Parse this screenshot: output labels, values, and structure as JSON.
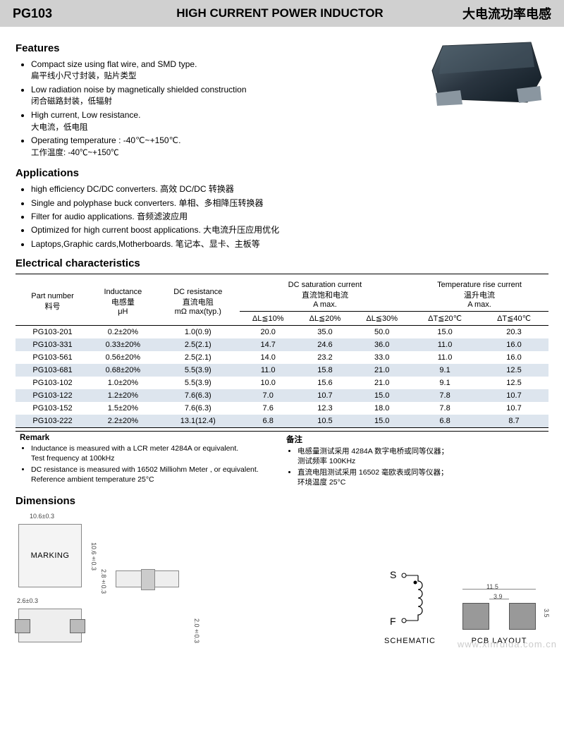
{
  "header": {
    "part": "PG103",
    "title_en": "HIGH CURRENT POWER INDUCTOR",
    "title_cn": "大电流功率电感"
  },
  "sections": {
    "features": "Features",
    "applications": "Applications",
    "elec": "Electrical  characteristics",
    "dims": "Dimensions"
  },
  "features": [
    {
      "en": "Compact size using flat wire, and SMD type.",
      "cn": "扁平线小尺寸封装，贴片类型"
    },
    {
      "en": "Low radiation noise by magnetically shielded construction",
      "cn": "闭合磁路封装，低辐射"
    },
    {
      "en": "High current, Low resistance.",
      "cn": "大电流，低电阻"
    },
    {
      "en": "Operating temperature : -40℃~+150℃.",
      "cn": "工作温度:  -40℃~+150℃"
    }
  ],
  "applications": [
    "high efficiency DC/DC converters.  高效 DC/DC 转换器",
    "Single and polyphase buck converters.  单相、多相降压转换器",
    "Filter for audio applications.  音频滤波应用",
    "Optimized for high current boost applications.  大电流升压应用优化",
    "Laptops,Graphic cards,Motherboards.     笔记本、显卡、主板等"
  ],
  "table": {
    "head": {
      "part": "Part number\n料号",
      "ind": "Inductance\n电感量\nμH",
      "dcr": "DC resistance\n直流电阻\nmΩ max(typ.)",
      "sat_grp": "DC saturation current\n直流饱和电流\nA max.",
      "temp_grp": "Temperature rise current\n温升电流\nA max.",
      "sat_cols": [
        "ΔL≦10%",
        "ΔL≦20%",
        "ΔL≦30%"
      ],
      "temp_cols": [
        "ΔT≦20℃",
        "ΔT≦40℃"
      ]
    },
    "rows": [
      [
        "PG103-201",
        "0.2±20%",
        "1.0(0.9)",
        "20.0",
        "35.0",
        "50.0",
        "15.0",
        "20.3"
      ],
      [
        "PG103-331",
        "0.33±20%",
        "2.5(2.1)",
        "14.7",
        "24.6",
        "36.0",
        "11.0",
        "16.0"
      ],
      [
        "PG103-561",
        "0.56±20%",
        "2.5(2.1)",
        "14.0",
        "23.2",
        "33.0",
        "11.0",
        "16.0"
      ],
      [
        "PG103-681",
        "0.68±20%",
        "5.5(3.9)",
        "11.0",
        "15.8",
        "21.0",
        "9.1",
        "12.5"
      ],
      [
        "PG103-102",
        "1.0±20%",
        "5.5(3.9)",
        "10.0",
        "15.6",
        "21.0",
        "9.1",
        "12.5"
      ],
      [
        "PG103-122",
        "1.2±20%",
        "7.6(6.3)",
        "7.0",
        "10.7",
        "15.0",
        "7.8",
        "10.7"
      ],
      [
        "PG103-152",
        "1.5±20%",
        "7.6(6.3)",
        "7.6",
        "12.3",
        "18.0",
        "7.8",
        "10.7"
      ],
      [
        "PG103-222",
        "2.2±20%",
        "13.1(12.4)",
        "6.8",
        "10.5",
        "15.0",
        "6.8",
        "8.7"
      ]
    ]
  },
  "remark": {
    "left_hdr": "Remark",
    "left": [
      "Inductance is measured with a LCR meter 4284A or equivalent.\nTest frequency at 100kHz",
      "DC resistance is measured with 16502 Milliohm Meter , or equivalent.\nReference ambient temperature 25°C"
    ],
    "right_hdr": "备注",
    "right": [
      "电感量测试采用 4284A 数字电桥或同等仪器；\n测试频率 100KHz",
      "直流电阻测试采用 16502 毫欧表或同等仪器；\n环境温度 25°C"
    ]
  },
  "dims": {
    "marking": "MARKING",
    "w": "10.6±0.3",
    "h": "10.6±0.3",
    "th": "2.8±0.3",
    "pad_w": "2.6±0.3",
    "pad_h": "2.0±0.3",
    "pcb_w": "11.5",
    "pcb_gap": "3.9",
    "pcb_h": "3.5",
    "schematic": "SCHEMATIC",
    "pcb": "PCB LAYOUT",
    "s": "S",
    "f": "F"
  },
  "watermark": "www.xinruida.com.cn"
}
